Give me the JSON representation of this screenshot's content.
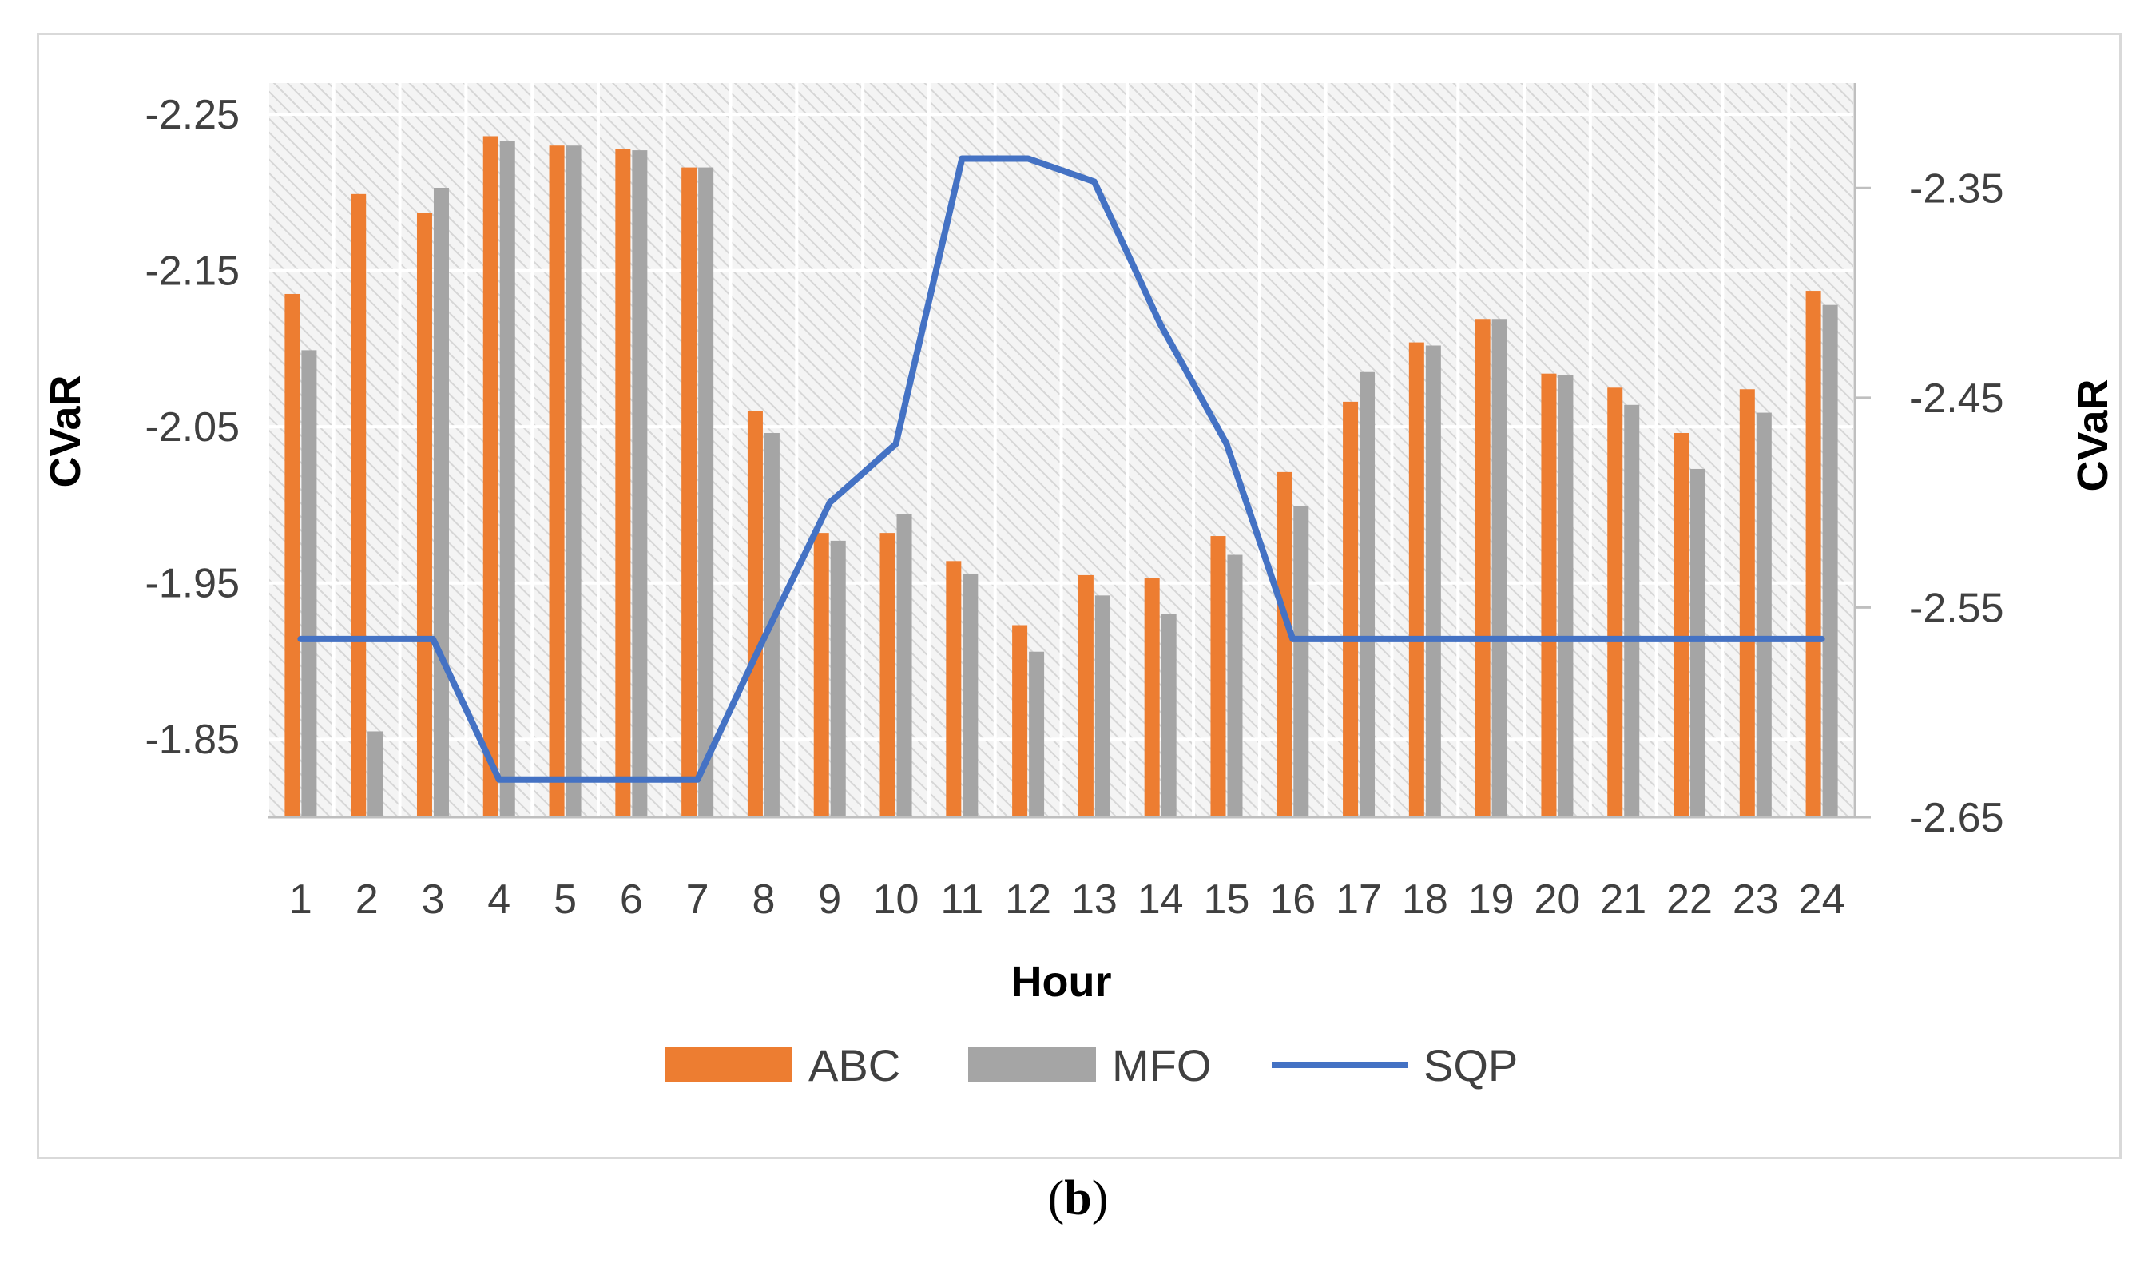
{
  "caption": {
    "open": "(",
    "letter": "b",
    "close": ")"
  },
  "chart_data": {
    "type": "bar",
    "xlabel": "Hour",
    "ylabel_left": "CVaR",
    "ylabel_right": "CVaR",
    "categories": [
      "1",
      "2",
      "3",
      "4",
      "5",
      "6",
      "7",
      "8",
      "9",
      "10",
      "11",
      "12",
      "13",
      "14",
      "15",
      "16",
      "17",
      "18",
      "19",
      "20",
      "21",
      "22",
      "23",
      "24"
    ],
    "left_axis": {
      "min": -2.27,
      "max": -1.8,
      "reversed": true,
      "ticks": [
        -2.25,
        -2.15,
        -2.05,
        -1.95,
        -1.85
      ],
      "tick_labels": [
        "-2.25",
        "-2.15",
        "-2.05",
        "-1.95",
        "-1.85"
      ]
    },
    "right_axis": {
      "min": -2.65,
      "max": -2.3,
      "reversed": true,
      "ticks": [
        -2.35,
        -2.45,
        -2.55,
        -2.65
      ],
      "tick_labels": [
        "-2.35",
        "-2.45",
        "-2.55",
        "-2.65"
      ]
    },
    "gridlines": true,
    "legend_position": "bottom",
    "series": [
      {
        "name": "ABC",
        "type": "bar",
        "axis": "left",
        "color": "#ED7D31",
        "values": [
          -2.135,
          -2.199,
          -2.187,
          -2.236,
          -2.23,
          -2.228,
          -2.216,
          -2.06,
          -1.982,
          -1.982,
          -1.964,
          -1.923,
          -1.955,
          -1.953,
          -1.98,
          -2.021,
          -2.066,
          -2.104,
          -2.119,
          -2.084,
          -2.075,
          -2.046,
          -2.074,
          -2.137
        ]
      },
      {
        "name": "MFO",
        "type": "bar",
        "axis": "left",
        "color": "#A5A5A5",
        "values": [
          -2.099,
          -1.855,
          -2.203,
          -2.233,
          -2.23,
          -2.227,
          -2.216,
          -2.046,
          -1.977,
          -1.994,
          -1.956,
          -1.906,
          -1.942,
          -1.93,
          -1.968,
          -1.999,
          -2.085,
          -2.102,
          -2.119,
          -2.083,
          -2.064,
          -2.023,
          -2.059,
          -2.128
        ]
      },
      {
        "name": "SQP",
        "type": "line",
        "axis": "right",
        "color": "#4472C4",
        "values": [
          -2.565,
          -2.565,
          -2.565,
          -2.632,
          -2.632,
          -2.632,
          -2.632,
          -2.565,
          -2.5,
          -2.472,
          -2.336,
          -2.336,
          -2.347,
          -2.415,
          -2.472,
          -2.565,
          -2.565,
          -2.565,
          -2.565,
          -2.565,
          -2.565,
          -2.565,
          -2.565,
          -2.565
        ]
      }
    ]
  }
}
